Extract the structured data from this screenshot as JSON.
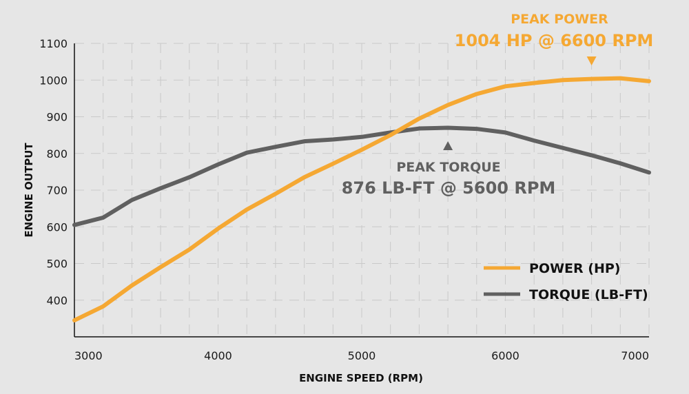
{
  "chart_data": {
    "type": "line",
    "title": "",
    "xlabel": "ENGINE SPEED (RPM)",
    "ylabel": "ENGINE OUTPUT",
    "xlim": [
      3000,
      7000
    ],
    "ylim": [
      300,
      1100
    ],
    "x_ticks": [
      3000,
      4000,
      5000,
      6000,
      7000
    ],
    "y_ticks": [
      400,
      500,
      600,
      700,
      800,
      900,
      1000,
      1100
    ],
    "grid": true,
    "legend_position": "bottom-right",
    "x": [
      3000,
      3200,
      3400,
      3600,
      3800,
      4000,
      4200,
      4400,
      4600,
      4800,
      5000,
      5200,
      5400,
      5600,
      5800,
      6000,
      6200,
      6400,
      6600,
      6800,
      7000
    ],
    "series": [
      {
        "name": "POWER (HP)",
        "color": "#f5a833",
        "values": [
          345,
          383,
          440,
          490,
          538,
          595,
          647,
          690,
          735,
          772,
          810,
          850,
          895,
          932,
          962,
          983,
          992,
          1000,
          1003,
          1005,
          997
        ]
      },
      {
        "name": "TORQUE (LB-FT)",
        "color": "#606060",
        "values": [
          605,
          625,
          673,
          705,
          735,
          770,
          802,
          818,
          833,
          838,
          845,
          857,
          868,
          870,
          867,
          857,
          835,
          815,
          795,
          773,
          748
        ]
      }
    ],
    "annotations": [
      {
        "title": "PEAK POWER",
        "text": "1004 HP @ 6600 RPM",
        "x": 6600,
        "color": "#f5a833"
      },
      {
        "title": "PEAK TORQUE",
        "text": "876 LB-FT @ 5600 RPM",
        "x": 5600,
        "color": "#606060"
      }
    ]
  }
}
